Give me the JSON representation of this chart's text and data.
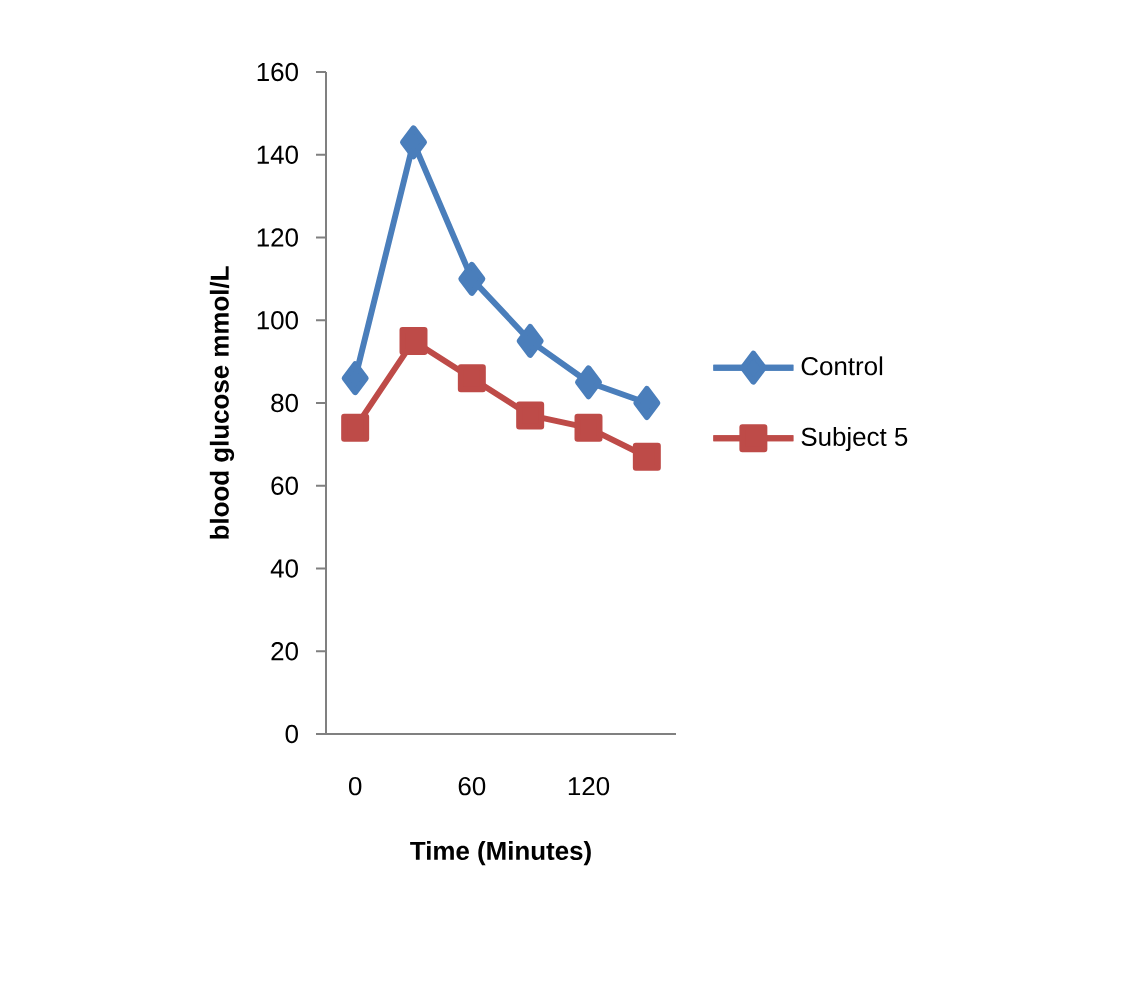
{
  "chart_data": {
    "type": "line",
    "xlabel": "Time (Minutes)",
    "ylabel": "blood glucose mmol/L",
    "categories": [
      "0",
      null,
      "60",
      null,
      "120",
      null
    ],
    "series": [
      {
        "name": "Control",
        "color": "#4a7ebb",
        "values": [
          86,
          143,
          110,
          95,
          85,
          80
        ],
        "marker": "diamond"
      },
      {
        "name": "Subject 5",
        "color": "#be4b48",
        "values": [
          74,
          95,
          86,
          77,
          74,
          67
        ],
        "marker": "square"
      }
    ],
    "ylim": [
      0,
      160
    ],
    "yticks": [
      0,
      20,
      40,
      60,
      80,
      100,
      120,
      140,
      160
    ],
    "grid": false,
    "legend": "right"
  }
}
